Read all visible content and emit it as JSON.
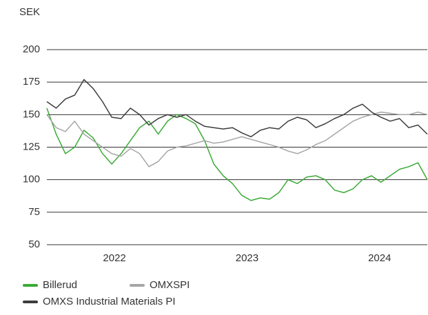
{
  "chart_data": {
    "type": "line",
    "y_label": "SEK",
    "x": [
      2021.49,
      2021.56,
      2021.63,
      2021.7,
      2021.77,
      2021.84,
      2021.91,
      2021.98,
      2022.05,
      2022.12,
      2022.19,
      2022.26,
      2022.33,
      2022.4,
      2022.47,
      2022.54,
      2022.61,
      2022.68,
      2022.75,
      2022.82,
      2022.89,
      2022.96,
      2023.03,
      2023.1,
      2023.17,
      2023.24,
      2023.31,
      2023.38,
      2023.45,
      2023.52,
      2023.59,
      2023.66,
      2023.73,
      2023.8,
      2023.87,
      2023.94,
      2024.01,
      2024.08,
      2024.15,
      2024.22,
      2024.29,
      2024.36
    ],
    "xlim": [
      2021.49,
      2024.36
    ],
    "xticks": [
      2022,
      2023,
      2024
    ],
    "ylim": [
      50,
      200
    ],
    "yticks": [
      50,
      75,
      100,
      125,
      150,
      175,
      200
    ],
    "grid": true,
    "legend": "bottom",
    "series": [
      {
        "name": "Billerud",
        "color": "#3aaa35",
        "values": [
          155,
          135,
          120,
          125,
          138,
          132,
          120,
          112,
          120,
          130,
          140,
          145,
          135,
          145,
          150,
          147,
          143,
          130,
          112,
          103,
          97,
          88,
          84,
          86,
          85,
          90,
          100,
          97,
          102,
          103,
          100,
          92,
          90,
          93,
          100,
          103,
          98,
          103,
          108,
          110,
          113,
          100
        ]
      },
      {
        "name": "OMXSPI",
        "color": "#a6a6a6",
        "values": [
          150,
          140,
          137,
          145,
          135,
          130,
          125,
          120,
          118,
          124,
          120,
          110,
          114,
          122,
          125,
          126,
          128,
          130,
          128,
          129,
          131,
          133,
          131,
          129,
          127,
          125,
          122,
          120,
          123,
          127,
          130,
          135,
          140,
          145,
          148,
          150,
          152,
          151,
          150,
          150,
          152,
          150
        ]
      },
      {
        "name": "OMXS Industrial Materials PI",
        "color": "#3c3c3c",
        "values": [
          160,
          155,
          162,
          165,
          177,
          170,
          160,
          148,
          147,
          155,
          150,
          142,
          147,
          150,
          148,
          150,
          145,
          141,
          140,
          139,
          140,
          136,
          133,
          138,
          140,
          139,
          145,
          148,
          146,
          140,
          143,
          147,
          150,
          155,
          158,
          152,
          148,
          145,
          147,
          140,
          142,
          135
        ]
      }
    ]
  }
}
